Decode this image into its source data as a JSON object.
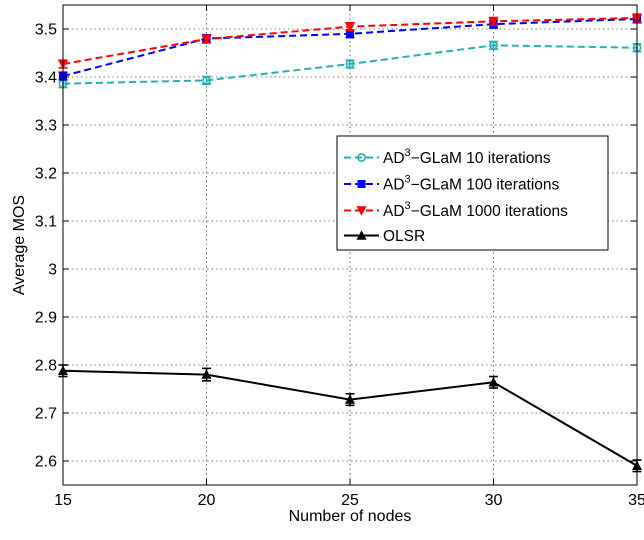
{
  "chart_data": {
    "type": "line",
    "xlabel": "Number of nodes",
    "ylabel": "Average MOS",
    "xlim": [
      15,
      35
    ],
    "ylim": [
      2.55,
      3.55
    ],
    "xticks": [
      15,
      20,
      25,
      30,
      35
    ],
    "xtick_labels": [
      "15",
      "20",
      "25",
      "30",
      "35"
    ],
    "yticks": [
      2.6,
      2.7,
      2.8,
      2.9,
      3.0,
      3.1,
      3.2,
      3.3,
      3.4,
      3.5
    ],
    "ytick_labels": [
      "2.6",
      "2.7",
      "2.8",
      "2.9",
      "3",
      "3.1",
      "3.2",
      "3.3",
      "3.4",
      "3.5"
    ],
    "grid": true,
    "legend_position": "center-right",
    "x": [
      15,
      20,
      25,
      30,
      35
    ],
    "series": [
      {
        "name": "AD3-GLaM 10 iterations",
        "legend_base": "AD",
        "legend_sup": "3",
        "legend_rest": "−GLaM 10 iterations",
        "color": "#20b2b2",
        "style": "dashed",
        "marker": "circle",
        "values": [
          3.386,
          3.393,
          3.427,
          3.466,
          3.461
        ],
        "errors": [
          0.008,
          0.008,
          0.008,
          0.008,
          0.008
        ]
      },
      {
        "name": "AD3-GLaM 100 iterations",
        "legend_base": "AD",
        "legend_sup": "3",
        "legend_rest": "−GLaM 100 iterations",
        "color": "#0000ff",
        "style": "dashed",
        "marker": "square",
        "values": [
          3.402,
          3.48,
          3.49,
          3.51,
          3.521
        ],
        "errors": [
          0.008,
          0.008,
          0.008,
          0.008,
          0.008
        ]
      },
      {
        "name": "AD3-GLaM 1000 iterations",
        "legend_base": "AD",
        "legend_sup": "3",
        "legend_rest": "−GLaM 1000 iterations",
        "color": "#ff0000",
        "style": "dashed",
        "marker": "triangle-down",
        "values": [
          3.427,
          3.479,
          3.505,
          3.516,
          3.523
        ],
        "errors": [
          0.008,
          0.008,
          0.008,
          0.008,
          0.008
        ]
      },
      {
        "name": "OLSR",
        "legend_base": "OLSR",
        "legend_sup": "",
        "legend_rest": "",
        "color": "#000000",
        "style": "solid",
        "marker": "triangle-up",
        "values": [
          2.788,
          2.78,
          2.728,
          2.764,
          2.59
        ],
        "errors": [
          0.012,
          0.013,
          0.012,
          0.012,
          0.012
        ]
      }
    ]
  }
}
